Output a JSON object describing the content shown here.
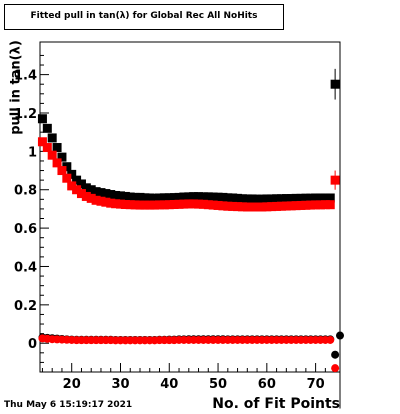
{
  "chart_data": {
    "type": "scatter",
    "title": "Fitted pull in tan(λ) for Global Rec All NoHits",
    "xlabel": "No. of Fit Points",
    "ylabel": "pull in tan(λ)",
    "xlim": [
      13.5,
      75
    ],
    "ylim": [
      -0.15,
      1.57
    ],
    "xticks": [
      20,
      30,
      40,
      50,
      60,
      70
    ],
    "yticks": [
      0,
      0.2,
      0.4,
      0.6,
      0.8,
      1.0,
      1.2,
      1.4
    ],
    "ytick_labels": [
      "0",
      "0.2",
      "0.4",
      "0.6",
      "0.8",
      "1",
      "1.2",
      "1.4"
    ],
    "grid": false,
    "x": [
      14,
      15,
      16,
      17,
      18,
      19,
      20,
      21,
      22,
      23,
      24,
      25,
      26,
      27,
      28,
      29,
      30,
      31,
      32,
      33,
      34,
      35,
      36,
      37,
      38,
      39,
      40,
      41,
      42,
      43,
      44,
      45,
      46,
      47,
      48,
      49,
      50,
      51,
      52,
      53,
      54,
      55,
      56,
      57,
      58,
      59,
      60,
      61,
      62,
      63,
      64,
      65,
      66,
      67,
      68,
      69,
      70,
      71,
      72,
      73
    ],
    "series": [
      {
        "marker": "square",
        "color": "#000000",
        "values": [
          1.17,
          1.12,
          1.07,
          1.02,
          0.97,
          0.92,
          0.88,
          0.85,
          0.83,
          0.81,
          0.8,
          0.79,
          0.785,
          0.78,
          0.775,
          0.77,
          0.768,
          0.765,
          0.762,
          0.76,
          0.76,
          0.758,
          0.757,
          0.756,
          0.757,
          0.758,
          0.758,
          0.759,
          0.76,
          0.762,
          0.763,
          0.764,
          0.764,
          0.763,
          0.763,
          0.762,
          0.761,
          0.76,
          0.758,
          0.757,
          0.755,
          0.753,
          0.752,
          0.752,
          0.751,
          0.751,
          0.752,
          0.752,
          0.753,
          0.753,
          0.754,
          0.754,
          0.755,
          0.755,
          0.756,
          0.756,
          0.757,
          0.757,
          0.757,
          0.757
        ]
      },
      {
        "marker": "square",
        "color": "#ff0000",
        "values": [
          1.05,
          1.02,
          0.98,
          0.94,
          0.9,
          0.86,
          0.82,
          0.8,
          0.78,
          0.765,
          0.755,
          0.745,
          0.74,
          0.735,
          0.73,
          0.727,
          0.725,
          0.723,
          0.722,
          0.721,
          0.72,
          0.72,
          0.72,
          0.72,
          0.721,
          0.721,
          0.722,
          0.723,
          0.724,
          0.725,
          0.726,
          0.726,
          0.725,
          0.724,
          0.722,
          0.72,
          0.718,
          0.716,
          0.714,
          0.713,
          0.712,
          0.711,
          0.71,
          0.71,
          0.71,
          0.71,
          0.711,
          0.712,
          0.713,
          0.714,
          0.715,
          0.716,
          0.717,
          0.718,
          0.719,
          0.72,
          0.721,
          0.721,
          0.722,
          0.722
        ]
      },
      {
        "marker": "circle",
        "color": "#000000",
        "values": [
          0.03,
          0.028,
          0.026,
          0.024,
          0.022,
          0.02,
          0.019,
          0.018,
          0.018,
          0.018,
          0.018,
          0.018,
          0.018,
          0.018,
          0.018,
          0.017,
          0.017,
          0.017,
          0.017,
          0.017,
          0.017,
          0.017,
          0.017,
          0.017,
          0.018,
          0.018,
          0.019,
          0.019,
          0.02,
          0.02,
          0.021,
          0.021,
          0.021,
          0.021,
          0.021,
          0.021,
          0.021,
          0.021,
          0.02,
          0.02,
          0.02,
          0.02,
          0.02,
          0.02,
          0.02,
          0.02,
          0.02,
          0.02,
          0.02,
          0.02,
          0.02,
          0.02,
          0.02,
          0.02,
          0.02,
          0.02,
          0.02,
          0.02,
          0.02,
          0.02
        ]
      },
      {
        "marker": "circle",
        "color": "#ff0000",
        "values": [
          0.025,
          0.023,
          0.021,
          0.02,
          0.019,
          0.018,
          0.017,
          0.016,
          0.016,
          0.016,
          0.016,
          0.016,
          0.016,
          0.016,
          0.016,
          0.015,
          0.015,
          0.015,
          0.015,
          0.015,
          0.015,
          0.015,
          0.015,
          0.015,
          0.016,
          0.016,
          0.016,
          0.016,
          0.017,
          0.017,
          0.017,
          0.017,
          0.017,
          0.017,
          0.017,
          0.017,
          0.017,
          0.017,
          0.017,
          0.017,
          0.017,
          0.017,
          0.017,
          0.017,
          0.017,
          0.017,
          0.017,
          0.017,
          0.017,
          0.017,
          0.017,
          0.017,
          0.017,
          0.017,
          0.017,
          0.017,
          0.017,
          0.017,
          0.017,
          0.017
        ]
      }
    ],
    "outliers": [
      {
        "marker": "square",
        "color": "#000000",
        "x": 74,
        "y": 1.35,
        "err": 0.08
      },
      {
        "marker": "square",
        "color": "#ff0000",
        "x": 74,
        "y": 0.85,
        "err": 0.05
      },
      {
        "marker": "circle",
        "color": "#000000",
        "x": 74,
        "y": -0.06,
        "err": 0.02
      },
      {
        "marker": "circle",
        "color": "#ff0000",
        "x": 74,
        "y": -0.13,
        "err": 0.02
      },
      {
        "marker": "circle",
        "color": "#000000",
        "x": 75,
        "y": 0.04,
        "err": 0.38
      }
    ]
  },
  "footer": {
    "datestamp": "Thu May  6 15:19:17 2021"
  }
}
